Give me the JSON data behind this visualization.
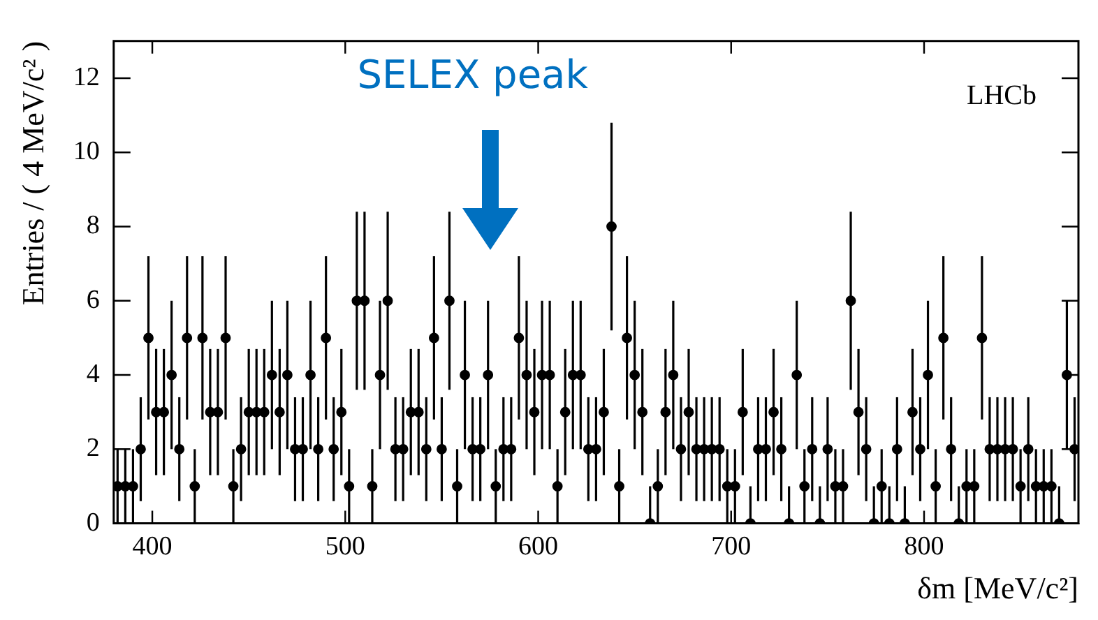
{
  "chart_data": {
    "type": "scatter",
    "xlabel": "δm [MeV/c²]",
    "ylabel": "Entries / ( 4 MeV/c² )",
    "annotations": [
      "SELEX peak",
      "LHCb"
    ],
    "xlim": [
      380,
      880
    ],
    "xticks": [
      400,
      500,
      600,
      700,
      800
    ],
    "ylim": [
      0,
      13
    ],
    "yticks": [
      0,
      2,
      4,
      6,
      8,
      10,
      12
    ],
    "marker": "circle",
    "series": [
      {
        "color": "#000000",
        "x": [
          382,
          386,
          390,
          394,
          398,
          402,
          406,
          410,
          414,
          418,
          422,
          426,
          430,
          434,
          438,
          442,
          446,
          450,
          454,
          458,
          462,
          466,
          470,
          474,
          478,
          482,
          486,
          490,
          494,
          498,
          502,
          506,
          510,
          514,
          518,
          522,
          526,
          530,
          534,
          538,
          542,
          546,
          550,
          554,
          558,
          562,
          566,
          570,
          574,
          578,
          582,
          586,
          590,
          594,
          598,
          602,
          606,
          610,
          614,
          618,
          622,
          626,
          630,
          634,
          638,
          642,
          646,
          650,
          654,
          658,
          662,
          666,
          670,
          674,
          678,
          682,
          686,
          690,
          694,
          698,
          702,
          706,
          710,
          714,
          718,
          722,
          726,
          730,
          734,
          738,
          742,
          746,
          750,
          754,
          758,
          762,
          766,
          770,
          774,
          778,
          782,
          786,
          790,
          794,
          798,
          802,
          806,
          810,
          814,
          818,
          822,
          826,
          830,
          834,
          838,
          842,
          846,
          850,
          854,
          858,
          862,
          866,
          870,
          874,
          878
        ],
        "values": [
          1,
          1,
          1,
          2,
          5,
          3,
          3,
          4,
          2,
          5,
          1,
          5,
          3,
          3,
          5,
          1,
          2,
          3,
          3,
          3,
          4,
          3,
          4,
          2,
          2,
          4,
          2,
          5,
          2,
          3,
          1,
          6,
          6,
          1,
          4,
          6,
          2,
          2,
          3,
          3,
          2,
          5,
          2,
          6,
          1,
          4,
          2,
          2,
          4,
          1,
          2,
          2,
          5,
          4,
          3,
          4,
          4,
          1,
          3,
          4,
          4,
          2,
          2,
          3,
          8,
          1,
          5,
          4,
          3,
          0,
          1,
          3,
          4,
          2,
          3,
          2,
          2,
          2,
          2,
          1,
          1,
          3,
          0,
          2,
          2,
          3,
          2,
          0,
          4,
          1,
          2,
          0,
          2,
          1,
          1,
          6,
          3,
          2,
          0,
          1,
          0,
          2,
          0,
          3,
          2,
          4,
          1,
          5,
          2,
          0,
          1,
          1,
          5,
          2,
          2,
          2,
          2,
          1,
          2,
          1,
          1,
          1,
          0,
          4,
          2
        ],
        "errors": [
          1,
          1,
          1,
          1.4,
          2.2,
          1.7,
          1.7,
          2,
          1.4,
          2.2,
          1,
          2.2,
          1.7,
          1.7,
          2.2,
          1,
          1.4,
          1.7,
          1.7,
          1.7,
          2,
          1.7,
          2,
          1.4,
          1.4,
          2,
          1.4,
          2.2,
          1.4,
          1.7,
          1,
          2.4,
          2.4,
          1,
          2,
          2.4,
          1.4,
          1.4,
          1.7,
          1.7,
          1.4,
          2.2,
          1.4,
          2.4,
          1,
          2,
          1.4,
          1.4,
          2,
          1,
          1.4,
          1.4,
          2.2,
          2,
          1.7,
          2,
          2,
          1,
          1.7,
          2,
          2,
          1.4,
          1.4,
          1.7,
          2.8,
          1,
          2.2,
          2,
          1.7,
          [
            0,
            1
          ],
          1,
          1.7,
          2,
          1.4,
          1.7,
          1.4,
          1.4,
          1.4,
          1.4,
          1,
          1,
          1.7,
          [
            0,
            1
          ],
          1.4,
          1.4,
          1.7,
          1.4,
          [
            0,
            1
          ],
          2,
          1,
          1.4,
          [
            0,
            1
          ],
          1.4,
          1,
          1,
          2.4,
          1.7,
          1.4,
          [
            0,
            1
          ],
          1,
          [
            0,
            1
          ],
          1.4,
          [
            0,
            1
          ],
          1.7,
          1.4,
          2,
          1,
          2.2,
          1.4,
          [
            0,
            1
          ],
          1,
          1,
          2.2,
          1.4,
          1.4,
          1.4,
          1.4,
          1,
          1.4,
          1,
          1,
          1,
          [
            0,
            1
          ],
          2,
          1.4
        ]
      }
    ]
  }
}
